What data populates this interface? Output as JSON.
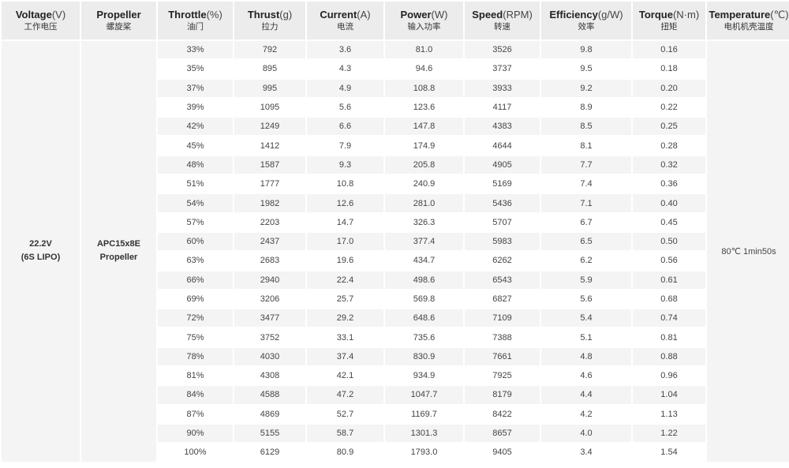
{
  "headers": [
    {
      "en": "Voltage",
      "unit": "(V)",
      "cn": "工作电压"
    },
    {
      "en": "Propeller",
      "unit": "",
      "cn": "螺旋桨"
    },
    {
      "en": "Throttle",
      "unit": "(%)",
      "cn": "油门"
    },
    {
      "en": "Thrust",
      "unit": "(g)",
      "cn": "拉力"
    },
    {
      "en": "Current",
      "unit": "(A)",
      "cn": "电流"
    },
    {
      "en": "Power",
      "unit": "(W)",
      "cn": "输入功率"
    },
    {
      "en": "Speed",
      "unit": "(RPM)",
      "cn": "转速"
    },
    {
      "en": "Efficiency",
      "unit": "(g/W)",
      "cn": "效率"
    },
    {
      "en": "Torque",
      "unit": "(N·m)",
      "cn": "扭矩"
    },
    {
      "en": "Temperature",
      "unit": "(℃)",
      "cn": "电机机壳温度"
    }
  ],
  "voltage": {
    "line1": "22.2V",
    "line2": "(6S LIPO)"
  },
  "propeller": {
    "line1": "APC15x8E",
    "line2": "Propeller"
  },
  "temperature": "80℃  1min50s",
  "rows": [
    [
      "33%",
      "792",
      "3.6",
      "81.0",
      "3526",
      "9.8",
      "0.16"
    ],
    [
      "35%",
      "895",
      "4.3",
      "94.6",
      "3737",
      "9.5",
      "0.18"
    ],
    [
      "37%",
      "995",
      "4.9",
      "108.8",
      "3933",
      "9.2",
      "0.20"
    ],
    [
      "39%",
      "1095",
      "5.6",
      "123.6",
      "4117",
      "8.9",
      "0.22"
    ],
    [
      "42%",
      "1249",
      "6.6",
      "147.8",
      "4383",
      "8.5",
      "0.25"
    ],
    [
      "45%",
      "1412",
      "7.9",
      "174.9",
      "4644",
      "8.1",
      "0.28"
    ],
    [
      "48%",
      "1587",
      "9.3",
      "205.8",
      "4905",
      "7.7",
      "0.32"
    ],
    [
      "51%",
      "1777",
      "10.8",
      "240.9",
      "5169",
      "7.4",
      "0.36"
    ],
    [
      "54%",
      "1982",
      "12.6",
      "281.0",
      "5436",
      "7.1",
      "0.40"
    ],
    [
      "57%",
      "2203",
      "14.7",
      "326.3",
      "5707",
      "6.7",
      "0.45"
    ],
    [
      "60%",
      "2437",
      "17.0",
      "377.4",
      "5983",
      "6.5",
      "0.50"
    ],
    [
      "63%",
      "2683",
      "19.6",
      "434.7",
      "6262",
      "6.2",
      "0.56"
    ],
    [
      "66%",
      "2940",
      "22.4",
      "498.6",
      "6543",
      "5.9",
      "0.61"
    ],
    [
      "69%",
      "3206",
      "25.7",
      "569.8",
      "6827",
      "5.6",
      "0.68"
    ],
    [
      "72%",
      "3477",
      "29.2",
      "648.6",
      "7109",
      "5.4",
      "0.74"
    ],
    [
      "75%",
      "3752",
      "33.1",
      "735.6",
      "7388",
      "5.1",
      "0.81"
    ],
    [
      "78%",
      "4030",
      "37.4",
      "830.9",
      "7661",
      "4.8",
      "0.88"
    ],
    [
      "81%",
      "4308",
      "42.1",
      "934.9",
      "7925",
      "4.6",
      "0.96"
    ],
    [
      "84%",
      "4588",
      "47.2",
      "1047.7",
      "8179",
      "4.4",
      "1.04"
    ],
    [
      "87%",
      "4869",
      "52.7",
      "1169.7",
      "8422",
      "4.2",
      "1.13"
    ],
    [
      "90%",
      "5155",
      "58.7",
      "1301.3",
      "8657",
      "4.0",
      "1.22"
    ],
    [
      "100%",
      "6129",
      "80.9",
      "1793.0",
      "9405",
      "3.4",
      "1.54"
    ]
  ]
}
